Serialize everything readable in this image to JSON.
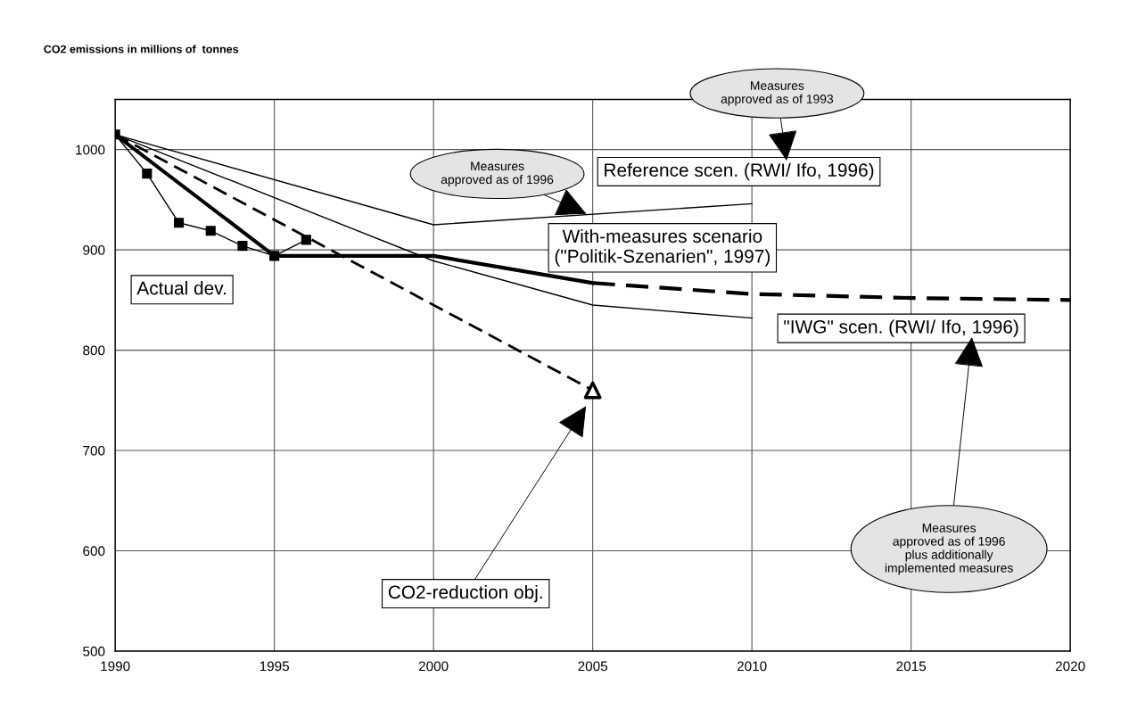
{
  "chart_data": {
    "type": "line",
    "ylabel": "CO2 emissions in millions of  tonnes",
    "xlim": [
      1990,
      2020
    ],
    "xticks": [
      1990,
      1995,
      2000,
      2005,
      2010,
      2015,
      2020
    ],
    "ylim": [
      500,
      1050
    ],
    "yticks": [
      500,
      600,
      700,
      800,
      900,
      1000
    ],
    "grid": true,
    "legend": false,
    "series": [
      {
        "color": "#000000",
        "x": [
          1990,
          1991,
          1992,
          1993,
          1994,
          1995,
          1996
        ],
        "values": [
          1015,
          976,
          927,
          919,
          904,
          894,
          910
        ],
        "marker": "square",
        "line_style": "solid"
      },
      {
        "color": "#000000",
        "x": [
          1990,
          1995,
          2000,
          2005
        ],
        "values": [
          1015,
          894,
          894,
          867
        ],
        "marker": "none",
        "line_style": "solid"
      },
      {
        "color": "#000000",
        "x": [
          2005,
          2010,
          2015,
          2020
        ],
        "values": [
          867,
          856,
          852,
          850
        ],
        "marker": "none",
        "line_style": "dashed"
      },
      {
        "color": "#000000",
        "x": [
          1990,
          2000,
          2010
        ],
        "values": [
          1015,
          925,
          946
        ],
        "marker": "none",
        "line_style": "solid"
      },
      {
        "color": "#000000",
        "x": [
          1990,
          2000,
          2005,
          2010
        ],
        "values": [
          1015,
          889,
          845,
          832
        ],
        "marker": "none",
        "line_style": "solid"
      },
      {
        "color": "#000000",
        "x": [
          1990,
          2005
        ],
        "values": [
          1015,
          760
        ],
        "marker": "none",
        "line_style": "dashed"
      },
      {
        "type": "scatter",
        "color": "#000000",
        "x": [
          2005
        ],
        "values": [
          760
        ],
        "marker": "triangle"
      }
    ],
    "annotations": [
      "Actual dev.",
      "Reference scen. (RWI/ Ifo, 1996)",
      "With-measures scenario\n(\"Politik-Szenarien\", 1997)",
      "\"IWG\" scen. (RWI/ Ifo, 1996)",
      "CO2-reduction obj.",
      {
        "text": "Measures\napproved as of 1996",
        "x": 2004.8,
        "y": 936
      },
      "Measures\napproved as of 1993",
      "Measures\napproved as of 1996\nplus additionally\nimplemented measures"
    ]
  }
}
